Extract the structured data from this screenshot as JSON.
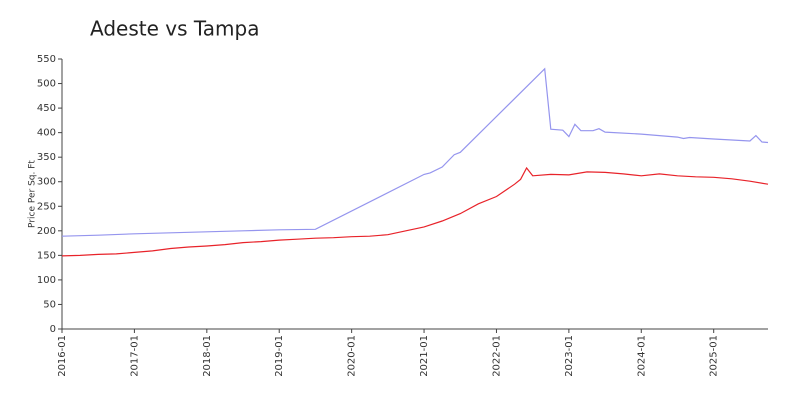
{
  "chart_data": {
    "type": "line",
    "title": "Adeste vs Tampa",
    "y_label": "Price Per Sq. Ft",
    "xlim": [
      "2016-01",
      "2025-10"
    ],
    "xticks": [
      "2016-01",
      "2017-01",
      "2018-01",
      "2019-01",
      "2020-01",
      "2021-01",
      "2022-01",
      "2023-01",
      "2024-01",
      "2025-01"
    ],
    "ylim": [
      0,
      550
    ],
    "yticks": [
      0,
      50,
      100,
      150,
      200,
      250,
      300,
      350,
      400,
      450,
      500,
      550
    ],
    "series": [
      {
        "color": "#9595ee",
        "x": [
          "2016-01",
          "2016-07",
          "2017-01",
          "2017-07",
          "2018-01",
          "2018-07",
          "2019-01",
          "2019-07",
          "2021-01",
          "2021-02",
          "2021-04",
          "2021-06",
          "2021-07",
          "2022-09",
          "2022-10",
          "2022-12",
          "2023-01",
          "2023-02",
          "2023-03",
          "2023-05",
          "2023-06",
          "2023-07",
          "2024-01",
          "2024-07",
          "2024-08",
          "2024-09",
          "2025-01",
          "2025-07",
          "2025-08",
          "2025-09",
          "2025-10"
        ],
        "values": [
          189,
          191,
          194,
          196,
          198,
          200,
          202,
          203,
          315,
          318,
          330,
          355,
          360,
          530,
          407,
          405,
          392,
          417,
          404,
          404,
          408,
          401,
          397,
          391,
          388,
          390,
          387,
          383,
          394,
          381,
          380
        ]
      },
      {
        "color": "#e8232a",
        "x": [
          "2016-01",
          "2016-04",
          "2016-07",
          "2016-10",
          "2017-01",
          "2017-04",
          "2017-07",
          "2017-10",
          "2018-01",
          "2018-04",
          "2018-07",
          "2018-10",
          "2019-01",
          "2019-04",
          "2019-07",
          "2019-10",
          "2020-01",
          "2020-04",
          "2020-07",
          "2020-10",
          "2021-01",
          "2021-04",
          "2021-07",
          "2021-10",
          "2022-01",
          "2022-04",
          "2022-05",
          "2022-06",
          "2022-07",
          "2022-10",
          "2023-01",
          "2023-04",
          "2023-07",
          "2023-10",
          "2024-01",
          "2024-04",
          "2024-07",
          "2024-10",
          "2025-01",
          "2025-04",
          "2025-07",
          "2025-10"
        ],
        "values": [
          149,
          150,
          152,
          153,
          156,
          159,
          164,
          167,
          169,
          172,
          176,
          178,
          181,
          183,
          185,
          186,
          188,
          189,
          192,
          200,
          208,
          220,
          235,
          255,
          270,
          295,
          305,
          328,
          312,
          315,
          314,
          320,
          319,
          316,
          312,
          316,
          312,
          310,
          309,
          306,
          301,
          295
        ]
      }
    ]
  }
}
